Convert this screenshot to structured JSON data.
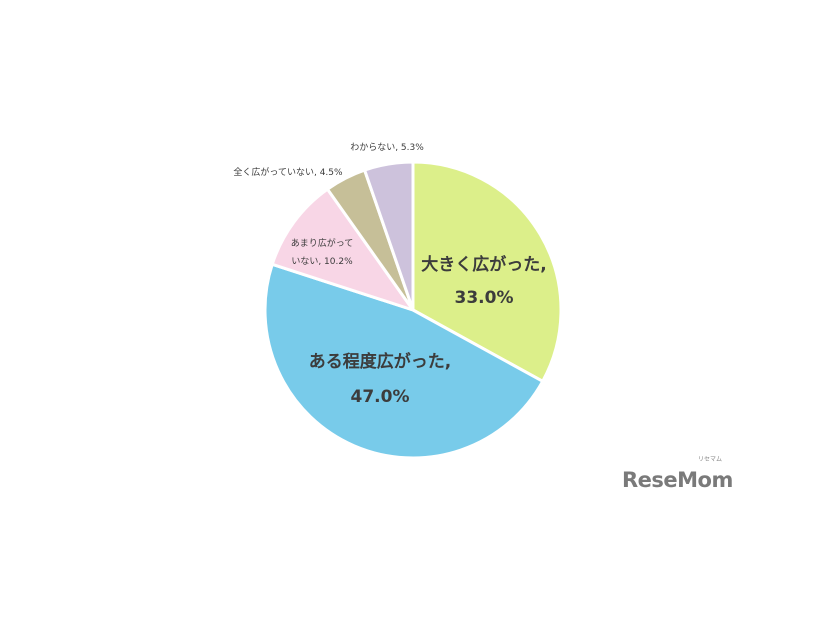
{
  "chart_data": {
    "type": "pie",
    "start_angle": "top, clockwise",
    "slices": [
      {
        "label": "大きく広がった,",
        "value_label": "33.0%",
        "value": 33.0,
        "color": "#dcef8a"
      },
      {
        "label": "ある程度広がった,",
        "value_label": "47.0%",
        "value": 47.0,
        "color": "#78cbea"
      },
      {
        "label": "あまり広がって",
        "label2": "いない, 10.2%",
        "value": 10.2,
        "color": "#f8d6e6"
      },
      {
        "label": "全く広がっていない, 4.5%",
        "value": 4.5,
        "color": "#c6bf98"
      },
      {
        "label": "わからない, 5.3%",
        "value": 5.3,
        "color": "#cdc2dc"
      }
    ]
  },
  "logo": {
    "text": "ReseMom",
    "sub": "リセマム"
  }
}
